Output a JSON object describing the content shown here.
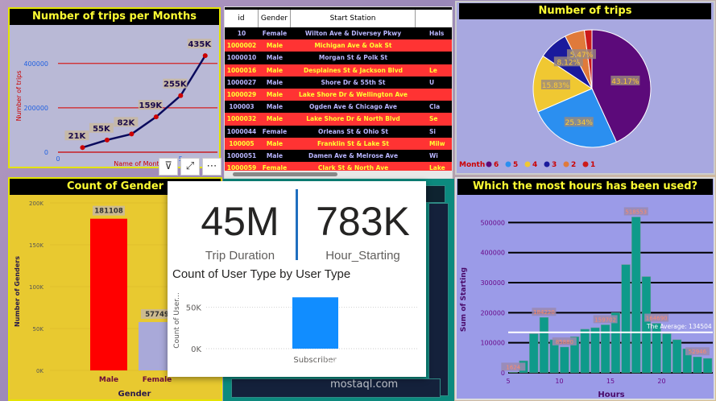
{
  "trips_month": {
    "title": "Number of trips per Months",
    "ylabel": "Number of trips",
    "xlabel": "Name of Month",
    "yticks": [
      "0",
      "200000",
      "400000"
    ],
    "xticks": [
      "0",
      "5"
    ],
    "labels": [
      "21K",
      "55K",
      "82K",
      "159K",
      "255K",
      "435K"
    ]
  },
  "table": {
    "headers": [
      "id",
      "Gender",
      "Start Station",
      ""
    ],
    "rows": [
      [
        "10",
        "Female",
        "Wilton Ave & Diversey Pkwy",
        "Hals"
      ],
      [
        "1000002",
        "Male",
        "Michigan Ave & Oak St",
        ""
      ],
      [
        "1000010",
        "Male",
        "Morgan St & Polk St",
        ""
      ],
      [
        "1000016",
        "Male",
        "Desplaines St & Jackson Blvd",
        "Le"
      ],
      [
        "1000027",
        "Male",
        "Shore Dr & 55th St",
        "U"
      ],
      [
        "1000029",
        "Male",
        "Lake Shore Dr & Wellington Ave",
        ""
      ],
      [
        "100003",
        "Male",
        "Ogden Ave & Chicago Ave",
        "Cla"
      ],
      [
        "1000032",
        "Male",
        "Lake Shore Dr & North Blvd",
        "Se"
      ],
      [
        "1000044",
        "Female",
        "Orleans St & Ohio St",
        "Si"
      ],
      [
        "100005",
        "Male",
        "Franklin St & Lake St",
        "Milw"
      ],
      [
        "1000051",
        "Male",
        "Damen Ave & Melrose Ave",
        "Wi"
      ],
      [
        "1000059",
        "Female",
        "Clark St & North Ave",
        "Lake"
      ]
    ]
  },
  "pie": {
    "title": "Number of trips",
    "legend_title": "Month",
    "legend": [
      "6",
      "5",
      "4",
      "3",
      "2",
      "1"
    ],
    "labels": [
      "43.17%",
      "25.34%",
      "15.83%",
      "8.12%",
      "5.47%"
    ]
  },
  "gender": {
    "title": "Count of Gender",
    "ylabel": "Number of Genders",
    "xlabel": "Gender",
    "yticks": [
      "0K",
      "50K",
      "100K",
      "150K",
      "200K"
    ],
    "categories": [
      "Male",
      "Female"
    ],
    "value_labels": [
      "181108",
      "57749"
    ]
  },
  "card": {
    "kpi1_value": "45M",
    "kpi1_label": "Trip Duration",
    "kpi2_value": "783K",
    "kpi2_label": "Hour_Starting",
    "chart_title": "Count of User Type by User Type",
    "ylabel": "Count of User...",
    "yticks": [
      "0K",
      "50K"
    ],
    "category": "Subscriber"
  },
  "hours": {
    "title": "Which the most hours has been used?",
    "ylabel": "Sum of Starting",
    "xlabel": "Hours",
    "yticks": [
      "0",
      "100000",
      "200000",
      "300000",
      "400000",
      "500000"
    ],
    "xticks": [
      "5",
      "10",
      "15",
      "20"
    ],
    "avg_label": "The Average: 134504",
    "labels": [
      "1624",
      "184220",
      "85880",
      "159702",
      "518553",
      "164690",
      "52946"
    ]
  },
  "watermark": {
    "arabic": "مستقل",
    "latin": "mostaql.com"
  },
  "colors": {
    "title_bg": "#000000",
    "title_fg": "#ffff33",
    "accent_red": "#ff3333",
    "teal": "#0c8a7e"
  },
  "chart_data": [
    {
      "type": "line",
      "title": "Number of trips per Months",
      "xlabel": "Name of Month",
      "ylabel": "Number of trips",
      "x": [
        1,
        2,
        3,
        4,
        5,
        6
      ],
      "series": [
        {
          "values": [
            21000,
            55000,
            82000,
            159000,
            255000,
            435000
          ]
        }
      ],
      "ylim": [
        0,
        450000
      ],
      "xlim": [
        0,
        6.5
      ],
      "grid": true
    },
    {
      "type": "pie",
      "title": "Number of trips",
      "categories": [
        "6",
        "5",
        "4",
        "3",
        "2",
        "1"
      ],
      "values": [
        43.17,
        25.34,
        15.83,
        8.12,
        5.47,
        2.07
      ],
      "colors": [
        "#5c0a7a",
        "#2b8ff0",
        "#f0c832",
        "#1a1a9c",
        "#e07a3a",
        "#cc1a1a"
      ]
    },
    {
      "type": "bar",
      "title": "Count of Gender",
      "categories": [
        "Male",
        "Female"
      ],
      "values": [
        181108,
        57749
      ],
      "xlabel": "Gender",
      "ylabel": "Number of Genders",
      "ylim": [
        0,
        200000
      ]
    },
    {
      "type": "bar",
      "title": "Count of User Type by User Type",
      "categories": [
        "Subscriber"
      ],
      "values": [
        62000
      ],
      "ylabel": "Count of User...",
      "ylim": [
        0,
        70000
      ]
    },
    {
      "type": "bar",
      "title": "Which the most hours has been used?",
      "xlabel": "Hours",
      "ylabel": "Sum of Starting",
      "categories": [
        5,
        6,
        7,
        8,
        9,
        10,
        11,
        12,
        13,
        14,
        15,
        16,
        17,
        18,
        19,
        20,
        21,
        22,
        23,
        24
      ],
      "values": [
        1624,
        40000,
        130000,
        184220,
        110000,
        85880,
        120000,
        145000,
        150000,
        159702,
        200000,
        360000,
        518553,
        320000,
        164690,
        130000,
        110000,
        80000,
        52946,
        48000
      ],
      "average": 134504,
      "ylim": [
        0,
        560000
      ]
    }
  ]
}
